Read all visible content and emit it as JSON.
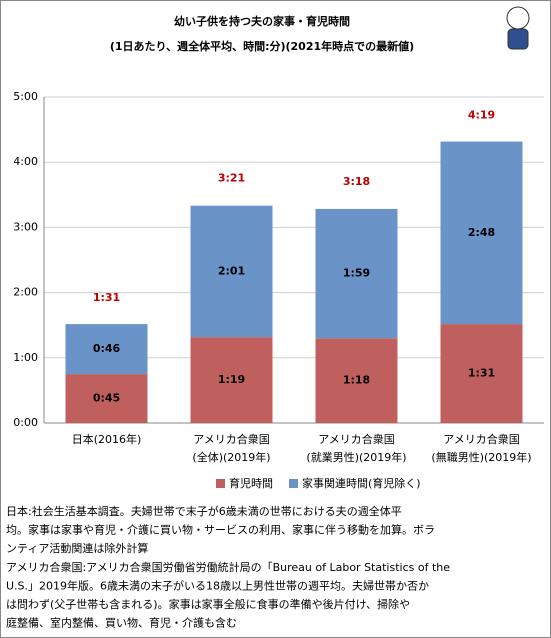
{
  "chart_data": {
    "type": "stacked-bar",
    "title": "幼い子供を持つ夫の家事・育児時間",
    "subtitle": "(1日あたり、週全体平均、時間:分)(2021年時点での最新値)",
    "categories": [
      [
        "日本(2016年)"
      ],
      [
        "アメリカ合衆国",
        "(全体)(2019年)"
      ],
      [
        "アメリカ合衆国",
        "(就業男性)(2019年)"
      ],
      [
        "アメリカ合衆国",
        "(無職男性)(2019年)"
      ]
    ],
    "series": [
      {
        "name": "育児時間",
        "color": "#c0605e",
        "values": [
          45,
          79,
          78,
          91
        ],
        "value_labels": [
          "0:45",
          "1:19",
          "1:18",
          "1:31"
        ]
      },
      {
        "name": "家事関連時間(育児除く)",
        "color": "#6a93c8",
        "values": [
          46,
          121,
          119,
          168
        ],
        "value_labels": [
          "0:46",
          "2:01",
          "1:59",
          "2:48"
        ]
      }
    ],
    "totals": [
      91,
      201,
      198,
      259
    ],
    "total_labels": [
      "1:31",
      "3:21",
      "3:18",
      "4:19"
    ],
    "total_color": "#c00000",
    "ylim": [
      0,
      300
    ],
    "yticks": [
      {
        "value": 0,
        "label": "0:00"
      },
      {
        "value": 60,
        "label": "1:00"
      },
      {
        "value": 120,
        "label": "2:00"
      },
      {
        "value": 180,
        "label": "3:00"
      },
      {
        "value": 240,
        "label": "4:00"
      },
      {
        "value": 300,
        "label": "5:00"
      }
    ],
    "grid": true,
    "notes": [
      "日本:社会生活基本調査。夫婦世帯で末子が6歳未満の世帯における夫の週全体平",
      "均。家事は家事や育児・介護に買い物・サービスの利用、家事に伴う移動を加算。ボラ",
      "ンティア活動関連は除外計算",
      "アメリカ合衆国:アメリカ合衆国労働省労働統計局の「Bureau of Labor Statistics of the",
      "U.S.」2019年版。6歳未満の末子がいる18歳以上男性世帯の週平均。夫婦世帯か否か",
      "は問わず(父子世帯も含まれる)。家事は家事全般に食事の準備や後片付け、掃除や",
      "庭整備、室内整備、買い物、育児・介護も含む"
    ]
  }
}
